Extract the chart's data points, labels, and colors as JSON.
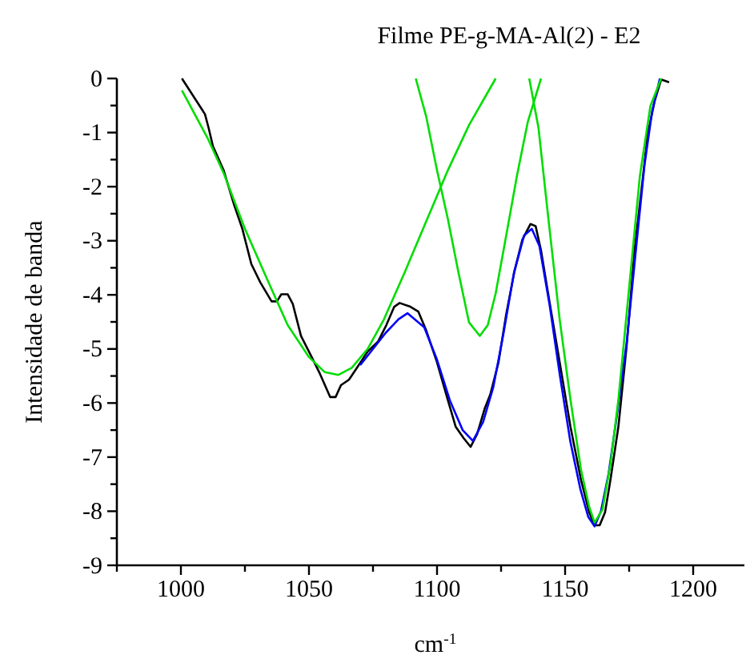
{
  "chart_data": {
    "type": "line",
    "title": "Filme PE-g-MA-Al(2) - E2",
    "xlabel": "cm$^{-1}$",
    "ylabel": "Intensidade de banda",
    "xlim": [
      975,
      1220
    ],
    "ylim": [
      -9,
      0
    ],
    "xticks": [
      {
        "value": 975,
        "label": null
      },
      1000,
      {
        "value": 1025,
        "label": null
      },
      1050,
      {
        "value": 1075,
        "label": null
      },
      1100,
      {
        "value": 1125,
        "label": null
      },
      1150,
      {
        "value": 1175,
        "label": null
      },
      1200
    ],
    "yticks": [
      -9,
      {
        "value": -8.5,
        "label": null
      },
      -8,
      {
        "value": -7.5,
        "label": null
      },
      -7,
      {
        "value": -6.5,
        "label": null
      },
      -6,
      {
        "value": -5.5,
        "label": null
      },
      -5,
      {
        "value": -4.5,
        "label": null
      },
      -4,
      {
        "value": -3.5,
        "label": null
      },
      -3,
      {
        "value": -2.5,
        "label": null
      },
      -2,
      {
        "value": -1.5,
        "label": null
      },
      -1,
      {
        "value": -0.5,
        "label": null
      },
      0
    ],
    "grid": false,
    "line_style": "solid",
    "marker": "none",
    "series": [
      {
        "color": "#000000",
        "x": [
          1000.4,
          1009.4,
          1010.8,
          1012.5,
          1016.7,
          1020.8,
          1024,
          1027.5,
          1031,
          1035.4,
          1037.5,
          1039.2,
          1041.7,
          1043.7,
          1046.9,
          1050,
          1054.2,
          1058.3,
          1060.4,
          1062.5,
          1065.6,
          1068.7,
          1072.9,
          1077,
          1080.2,
          1083.3,
          1085.4,
          1089.6,
          1092.7,
          1095.8,
          1100,
          1104.2,
          1107.3,
          1110.4,
          1113.1,
          1115.6,
          1118.7,
          1120.8,
          1124,
          1127,
          1130.2,
          1133.3,
          1136.5,
          1138.5,
          1140.6,
          1143.7,
          1147.9,
          1152.1,
          1156.2,
          1159.4,
          1161.5,
          1163.5,
          1165.6,
          1167.7,
          1170.8,
          1174,
          1177.1,
          1180.2,
          1182.3,
          1185,
          1187.5,
          1190.6
        ],
        "values": [
          0,
          -0.66,
          -0.91,
          -1.25,
          -1.7,
          -2.34,
          -2.78,
          -3.43,
          -3.77,
          -4.12,
          -4.12,
          -3.99,
          -3.99,
          -4.17,
          -4.76,
          -5.05,
          -5.45,
          -5.89,
          -5.89,
          -5.67,
          -5.57,
          -5.35,
          -5.05,
          -4.86,
          -4.56,
          -4.22,
          -4.15,
          -4.22,
          -4.31,
          -4.66,
          -5.25,
          -5.94,
          -6.44,
          -6.65,
          -6.81,
          -6.58,
          -6.09,
          -5.84,
          -5.25,
          -4.36,
          -3.57,
          -2.98,
          -2.69,
          -2.73,
          -3.18,
          -4.07,
          -5.25,
          -6.44,
          -7.42,
          -8.02,
          -8.26,
          -8.26,
          -8.02,
          -7.42,
          -6.44,
          -4.96,
          -3.18,
          -1.9,
          -1.01,
          -0.41,
          -0.02,
          -0.07
        ]
      },
      {
        "color": "#0000ff",
        "x": [
          1070,
          1080,
          1085,
          1088.5,
          1095,
          1100,
          1105,
          1110,
          1114,
          1118,
          1122,
          1126,
          1130,
          1134,
          1137,
          1140,
          1144,
          1148,
          1152,
          1156,
          1159,
          1161.5,
          1164,
          1167,
          1170,
          1174,
          1178,
          1181,
          1184,
          1187
        ],
        "values": [
          -5.3,
          -4.7,
          -4.45,
          -4.34,
          -4.6,
          -5.2,
          -5.95,
          -6.5,
          -6.7,
          -6.35,
          -5.7,
          -4.7,
          -3.6,
          -2.9,
          -2.78,
          -3.1,
          -4.2,
          -5.5,
          -6.7,
          -7.6,
          -8.1,
          -8.28,
          -8.0,
          -7.3,
          -6.3,
          -4.9,
          -3.0,
          -1.6,
          -0.6,
          0
        ]
      },
      {
        "color": "#00dd00",
        "x": [
          1000.4,
          1010.4,
          1016.7,
          1025,
          1033.3,
          1041.7,
          1050,
          1056.2,
          1061.5,
          1066.7,
          1072.9,
          1079.2,
          1087.5,
          1095.8,
          1104.2,
          1112.5,
          1122.9
        ],
        "values": [
          -0.22,
          -1.1,
          -1.75,
          -2.78,
          -3.67,
          -4.56,
          -5.15,
          -5.43,
          -5.48,
          -5.35,
          -5.0,
          -4.46,
          -3.57,
          -2.64,
          -1.7,
          -0.86,
          0
        ]
      },
      {
        "color": "#00dd00",
        "x": [
          1091.7,
          1095.8,
          1100,
          1104.2,
          1108.3,
          1112.5,
          1116.7,
          1119.8,
          1122.9,
          1127.1,
          1131.2,
          1135.4,
          1140.6
        ],
        "values": [
          0,
          -0.71,
          -1.7,
          -2.59,
          -3.57,
          -4.51,
          -4.76,
          -4.56,
          -3.97,
          -2.88,
          -1.8,
          -0.81,
          0
        ]
      },
      {
        "color": "#00dd00",
        "x": [
          1136,
          1139.6,
          1143.7,
          1147.9,
          1152.1,
          1156.2,
          1159.4,
          1161.5,
          1164.6,
          1167.7,
          1170.8,
          1175,
          1179.2,
          1183.3,
          1187.5
        ],
        "values": [
          0,
          -0.91,
          -2.69,
          -4.46,
          -5.94,
          -7.23,
          -7.92,
          -8.21,
          -7.97,
          -7.13,
          -5.94,
          -3.87,
          -1.8,
          -0.51,
          0
        ]
      }
    ]
  }
}
